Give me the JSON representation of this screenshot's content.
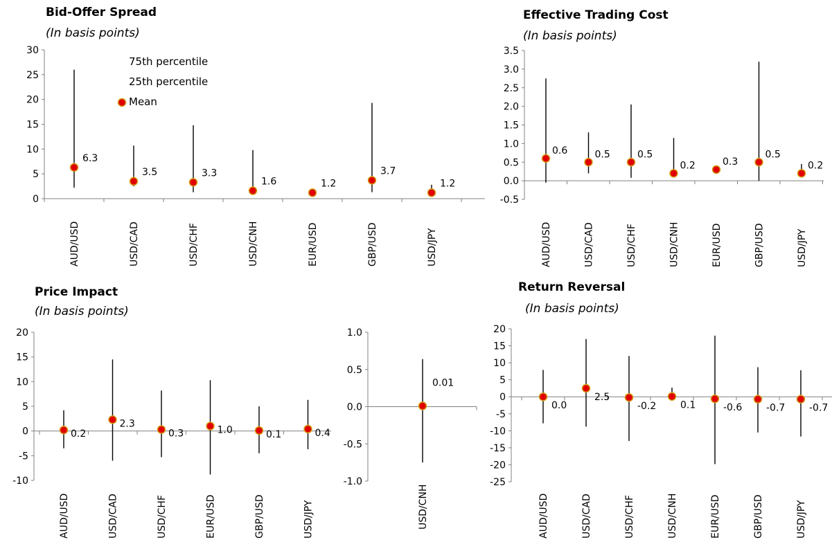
{
  "colors": {
    "marker_fill": "#e00000",
    "marker_stroke": "#d4a017",
    "axis": "#808080",
    "whisker": "#000000"
  },
  "legend": {
    "p75": "75th percentile",
    "p25": "25th percentile",
    "mean": "Mean"
  },
  "chart_data": [
    {
      "type": "scatter",
      "title": "Bid-Offer Spread",
      "subtitle": "(In basis points)",
      "ylim": [
        0,
        30
      ],
      "yticks": [
        "0",
        "5",
        "10",
        "15",
        "20",
        "25",
        "30"
      ],
      "categories": [
        "AUD/USD",
        "USD/CAD",
        "USD/CHF",
        "USD/CNH",
        "EUR/USD",
        "GBP/USD",
        "USD/JPY"
      ],
      "series": [
        {
          "name": "Mean",
          "values": [
            6.3,
            3.5,
            3.3,
            1.6,
            1.2,
            3.7,
            1.2
          ],
          "labels": [
            "6.3",
            "3.5",
            "3.3",
            "1.6",
            "1.2",
            "3.7",
            "1.2"
          ]
        },
        {
          "name": "25th percentile",
          "values": [
            2.2,
            2.5,
            1.3,
            0.8,
            0.6,
            1.3,
            0.6
          ]
        },
        {
          "name": "75th percentile",
          "values": [
            26,
            10.7,
            14.8,
            9.8,
            2.0,
            19.3,
            2.8
          ]
        }
      ]
    },
    {
      "type": "scatter",
      "title": "Effective Trading Cost",
      "subtitle": "(In basis points)",
      "ylim": [
        -0.5,
        3.5
      ],
      "yticks": [
        "-0.5",
        "0.0",
        "0.5",
        "1.0",
        "1.5",
        "2.0",
        "2.5",
        "3.0",
        "3.5"
      ],
      "categories": [
        "AUD/USD",
        "USD/CAD",
        "USD/CHF",
        "USD/CNH",
        "EUR/USD",
        "GBP/USD",
        "USD/JPY"
      ],
      "series": [
        {
          "name": "Mean",
          "values": [
            0.6,
            0.5,
            0.5,
            0.2,
            0.3,
            0.5,
            0.2
          ],
          "labels": [
            "0.6",
            "0.5",
            "0.5",
            "0.2",
            "0.3",
            "0.5",
            "0.2"
          ]
        },
        {
          "name": "25th percentile",
          "values": [
            -0.05,
            0.2,
            0.08,
            0.1,
            0.25,
            0.0,
            0.15
          ]
        },
        {
          "name": "75th percentile",
          "values": [
            2.75,
            1.3,
            2.05,
            1.15,
            0.35,
            3.2,
            0.45
          ]
        }
      ]
    },
    {
      "type": "scatter",
      "title": "Price Impact",
      "subtitle": "(In basis points)",
      "ylim": [
        -10,
        20
      ],
      "yticks": [
        "-10",
        "-5",
        "0",
        "5",
        "10",
        "15",
        "20"
      ],
      "categories": [
        "AUD/USD",
        "USD/CAD",
        "USD/CHF",
        "EUR/USD",
        "GBP/USD",
        "USD/JPY"
      ],
      "series": [
        {
          "name": "Mean",
          "values": [
            0.2,
            2.3,
            0.3,
            1.0,
            0.1,
            0.4
          ],
          "labels": [
            "0.2",
            "2.3",
            "0.3",
            "1.0",
            "0.1",
            "0.4"
          ]
        },
        {
          "name": "25th percentile",
          "values": [
            -3.5,
            -6.0,
            -5.3,
            -8.8,
            -4.5,
            -3.7
          ]
        },
        {
          "name": "75th percentile",
          "values": [
            4.2,
            14.5,
            8.2,
            10.3,
            5.0,
            6.3
          ]
        }
      ]
    },
    {
      "type": "scatter",
      "title": "",
      "ylim": [
        -1.0,
        1.0
      ],
      "yticks": [
        "-1.0",
        "-0.5",
        "0.0",
        "0.5",
        "1.0"
      ],
      "categories": [
        "USD/CNH"
      ],
      "series": [
        {
          "name": "Mean",
          "values": [
            0.01
          ],
          "labels": [
            "0.01"
          ]
        },
        {
          "name": "25th percentile",
          "values": [
            -0.75
          ]
        },
        {
          "name": "75th percentile",
          "values": [
            0.64
          ]
        }
      ]
    },
    {
      "type": "scatter",
      "title": "Return Reversal",
      "subtitle": "(In basis points)",
      "ylim": [
        -25,
        20
      ],
      "yticks": [
        "-25",
        "-20",
        "-15",
        "-10",
        "-5",
        "0",
        "5",
        "10",
        "15",
        "20"
      ],
      "categories": [
        "AUD/USD",
        "USD/CAD",
        "USD/CHF",
        "USD/CNH",
        "EUR/USD",
        "GBP/USD",
        "USD/JPY"
      ],
      "series": [
        {
          "name": "Mean",
          "values": [
            0.0,
            2.5,
            -0.2,
            0.1,
            -0.6,
            -0.7,
            -0.7
          ],
          "labels": [
            "0.0",
            "2.5",
            "-0.2",
            "0.1",
            "-0.6",
            "-0.7",
            "-0.7"
          ]
        },
        {
          "name": "25th percentile",
          "values": [
            -7.8,
            -8.8,
            -13.0,
            -0.5,
            -19.8,
            -10.5,
            -11.7
          ]
        },
        {
          "name": "75th percentile",
          "values": [
            7.9,
            17.0,
            12.0,
            2.7,
            18.0,
            8.7,
            7.8
          ]
        }
      ]
    }
  ]
}
